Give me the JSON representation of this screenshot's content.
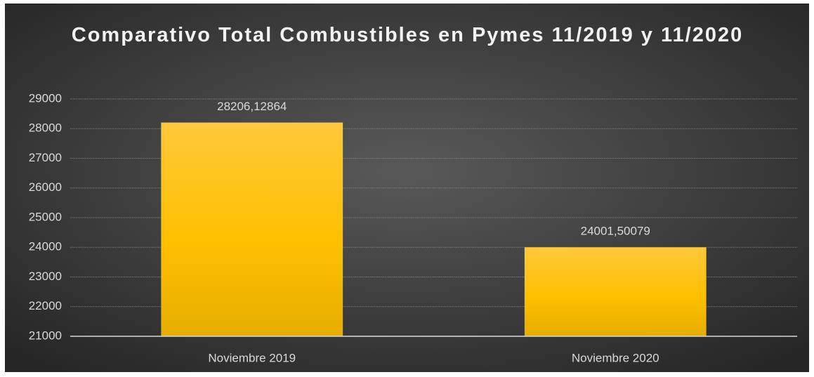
{
  "chart_data": {
    "type": "bar",
    "title": "Comparativo Total Combustibles en Pymes 11/2019 y 11/2020",
    "categories": [
      "Noviembre 2019",
      "Noviembre 2020"
    ],
    "values": [
      28206.12864,
      24001.50079
    ],
    "value_labels": [
      "28206,12864",
      "24001,50079"
    ],
    "color": "#ffc000",
    "ylim": [
      21000,
      29000
    ],
    "yticks": [
      21000,
      22000,
      23000,
      24000,
      25000,
      26000,
      27000,
      28000,
      29000
    ],
    "grid": true
  }
}
